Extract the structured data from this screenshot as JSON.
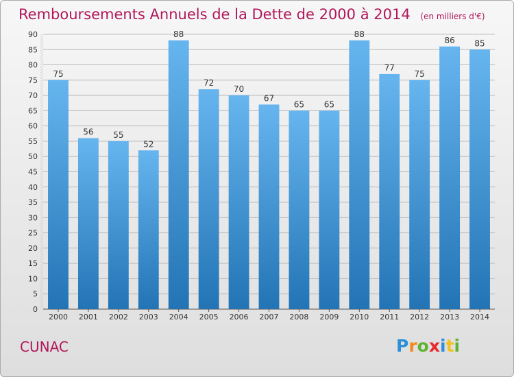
{
  "title": "Remboursements Annuels de la Dette de 2000 à 2014",
  "unit_label": "(en milliers d'€)",
  "commune": "CUNAC",
  "brand": "Proxiti",
  "colors": {
    "title": "#b0175a",
    "bar_top": "#66b5ef",
    "bar_bottom": "#2374b5",
    "grid": "#bfbfbf"
  },
  "chart_data": {
    "type": "bar",
    "title": "Remboursements Annuels de la Dette de 2000 à 2014",
    "categories": [
      "2000",
      "2001",
      "2002",
      "2003",
      "2004",
      "2005",
      "2006",
      "2007",
      "2008",
      "2009",
      "2010",
      "2011",
      "2012",
      "2013",
      "2014"
    ],
    "values": [
      75,
      56,
      55,
      52,
      88,
      72,
      70,
      67,
      65,
      65,
      88,
      77,
      75,
      86,
      85
    ],
    "ylim": [
      0,
      90
    ],
    "ytick_step": 5,
    "xlabel": "",
    "ylabel": "",
    "grid": true
  }
}
